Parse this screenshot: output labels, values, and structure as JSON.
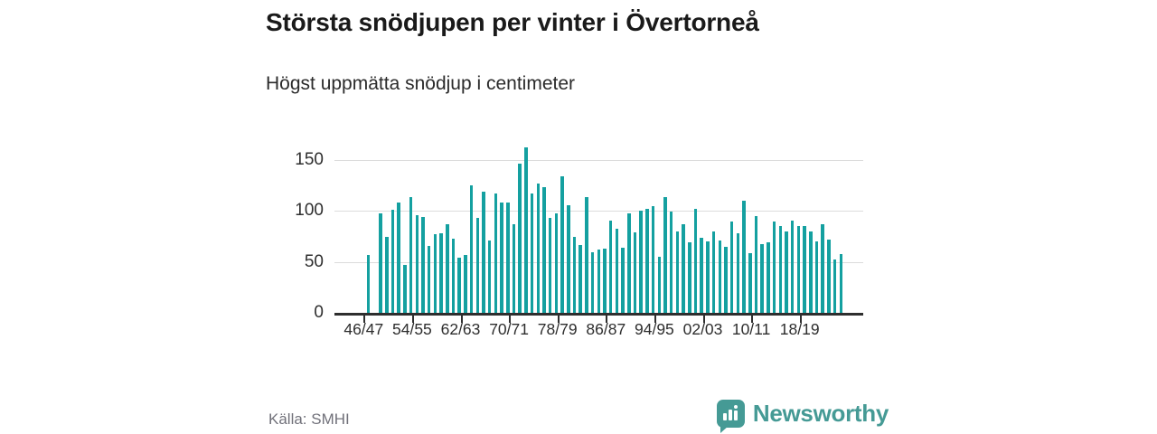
{
  "header": {
    "title": "Största snödjupen per vinter i Övertorneå",
    "subtitle": "Högst uppmätta snödjup i centimeter"
  },
  "footer": {
    "source": "Källa: SMHI",
    "brand_name": "Newsworthy",
    "brand_icon": "bar-chart-speech-bubble-icon"
  },
  "colors": {
    "bar": "#14a0a0",
    "grid": "#dcdcdc",
    "axis": "#2e2e2e",
    "brand_teal": "#459a95",
    "muted_text": "#71717a"
  },
  "chart_data": {
    "type": "bar",
    "title": "Största snödjupen per vinter i Övertorneå",
    "subtitle_unit": "centimeter",
    "first_winter": "1946/47",
    "last_winter": "2024/25",
    "note": "one bar per winter; winter 1947/48 has no bar (missing value)",
    "values": [
      57,
      null,
      98,
      75,
      101,
      108,
      47,
      114,
      96,
      94,
      66,
      77,
      78,
      87,
      73,
      54,
      57,
      125,
      93,
      119,
      71,
      117,
      108,
      108,
      87,
      146,
      162,
      117,
      127,
      123,
      93,
      98,
      134,
      106,
      75,
      67,
      114,
      60,
      62,
      63,
      91,
      83,
      64,
      98,
      79,
      100,
      102,
      105,
      55,
      114,
      99,
      80,
      87,
      69,
      102,
      74,
      70,
      80,
      71,
      65,
      90,
      78,
      110,
      59,
      95,
      68,
      69,
      90,
      85,
      80,
      91,
      85,
      85,
      80,
      70,
      87,
      72,
      53,
      58
    ],
    "x_tick_labels": [
      "46/47",
      "54/55",
      "62/63",
      "70/71",
      "78/79",
      "86/87",
      "94/95",
      "02/03",
      "10/11",
      "18/19"
    ],
    "x_tick_every": 8,
    "yticks": [
      0,
      50,
      100,
      150
    ],
    "ylim": [
      0,
      170
    ],
    "grid": true,
    "legend": false
  }
}
